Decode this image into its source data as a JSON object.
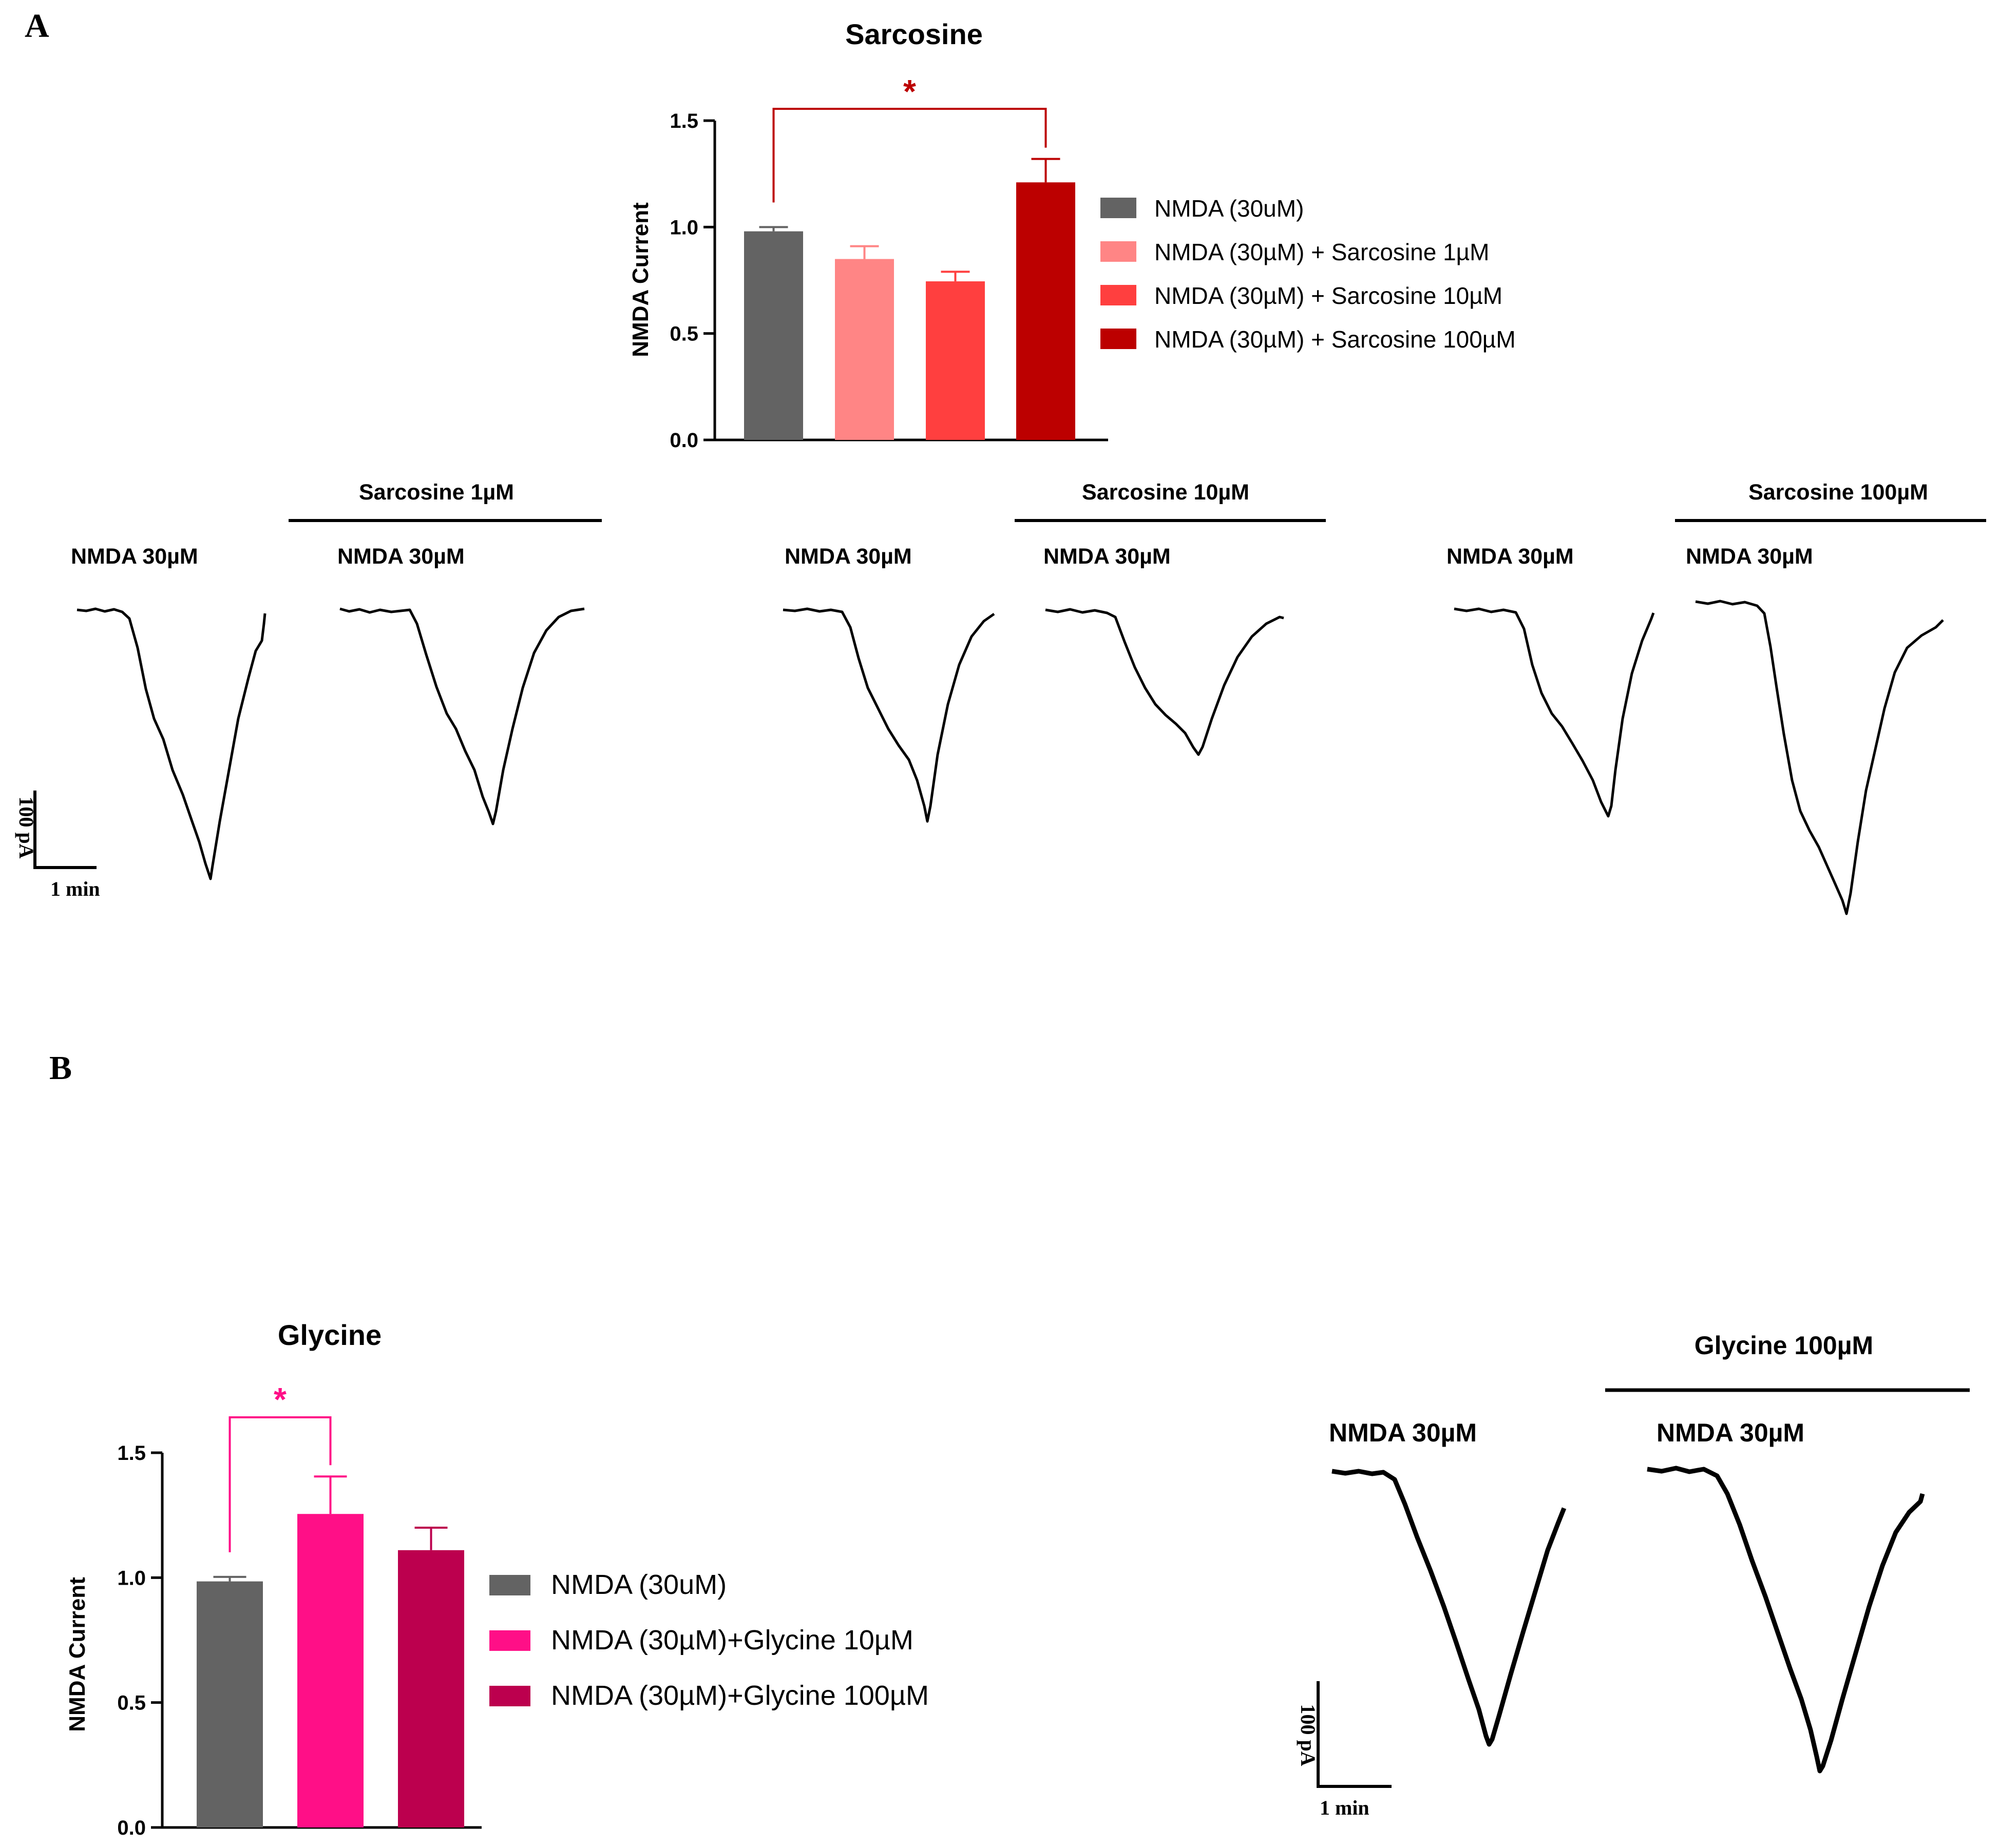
{
  "panels": {
    "a": "A",
    "b": "B"
  },
  "colors": {
    "ink": "#000000"
  },
  "chart_data": [
    {
      "id": "sarcosine",
      "type": "bar",
      "title": "Sarcosine",
      "ylabel": "NMDA Current",
      "xlabel": "",
      "ylim": [
        0,
        1.5
      ],
      "yticks": [
        0.0,
        0.5,
        1.0,
        1.5
      ],
      "ytick_labels": [
        "0.0",
        "0.5",
        "1.0",
        "1.5"
      ],
      "categories": [
        "NMDA (30uM)",
        "NMDA (30µM) + Sarcosine 1µM",
        "NMDA (30µM) + Sarcosine 10µM",
        "NMDA (30µM) + Sarcosine 100µM"
      ],
      "values": [
        0.98,
        0.85,
        0.745,
        1.21
      ],
      "errors": [
        0.02,
        0.06,
        0.045,
        0.11
      ],
      "colors": [
        "#636363",
        "#ff8585",
        "#ff3f3f",
        "#bc0000"
      ],
      "legend": [
        "NMDA (30uM)",
        "NMDA (30µM) + Sarcosine 1µM",
        "NMDA (30µM) + Sarcosine 10µM",
        "NMDA (30µM) + Sarcosine 100µM"
      ],
      "legend_position": "right",
      "significance": {
        "from": 0,
        "to": 3,
        "label": "*",
        "color": "#bc0000"
      }
    },
    {
      "id": "glycine",
      "type": "bar",
      "title": "Glycine",
      "ylabel": "NMDA Current",
      "xlabel": "",
      "ylim": [
        0,
        1.5
      ],
      "yticks": [
        0.0,
        0.5,
        1.0,
        1.5
      ],
      "ytick_labels": [
        "0.0",
        "0.5",
        "1.0",
        "1.5"
      ],
      "categories": [
        "NMDA (30uM)",
        "NMDA (30µM)+Glycine 10µM",
        "NMDA (30µM)+Glycine 100µM"
      ],
      "values": [
        0.985,
        1.255,
        1.11
      ],
      "errors": [
        0.018,
        0.15,
        0.09
      ],
      "colors": [
        "#636363",
        "#ff0f87",
        "#bc004e"
      ],
      "legend": [
        "NMDA (30uM)",
        "NMDA (30µM)+Glycine 10µM",
        "NMDA (30µM)+Glycine 100µM"
      ],
      "legend_position": "right",
      "significance": {
        "from": 0,
        "to": 1,
        "label": "*",
        "color": "#ff0f87"
      }
    }
  ],
  "traces_a": {
    "pairs": [
      {
        "treatment": "Sarcosine 1µM",
        "control_label": "NMDA 30µM",
        "treated_label": "NMDA 30µM"
      },
      {
        "treatment": "Sarcosine 10µM",
        "control_label": "NMDA 30µM",
        "treated_label": "NMDA 30µM"
      },
      {
        "treatment": "Sarcosine 100µM",
        "control_label": "NMDA 30µM",
        "treated_label": "NMDA 30µM"
      }
    ],
    "scale_bar": {
      "vertical": "100 pA",
      "horizontal": "1 min"
    }
  },
  "traces_b": {
    "treatment": "Glycine 100µM",
    "control_label": "NMDA 30µM",
    "treated_label": "NMDA 30µM",
    "scale_bar": {
      "vertical": "100 pA",
      "horizontal": "1 min"
    }
  }
}
